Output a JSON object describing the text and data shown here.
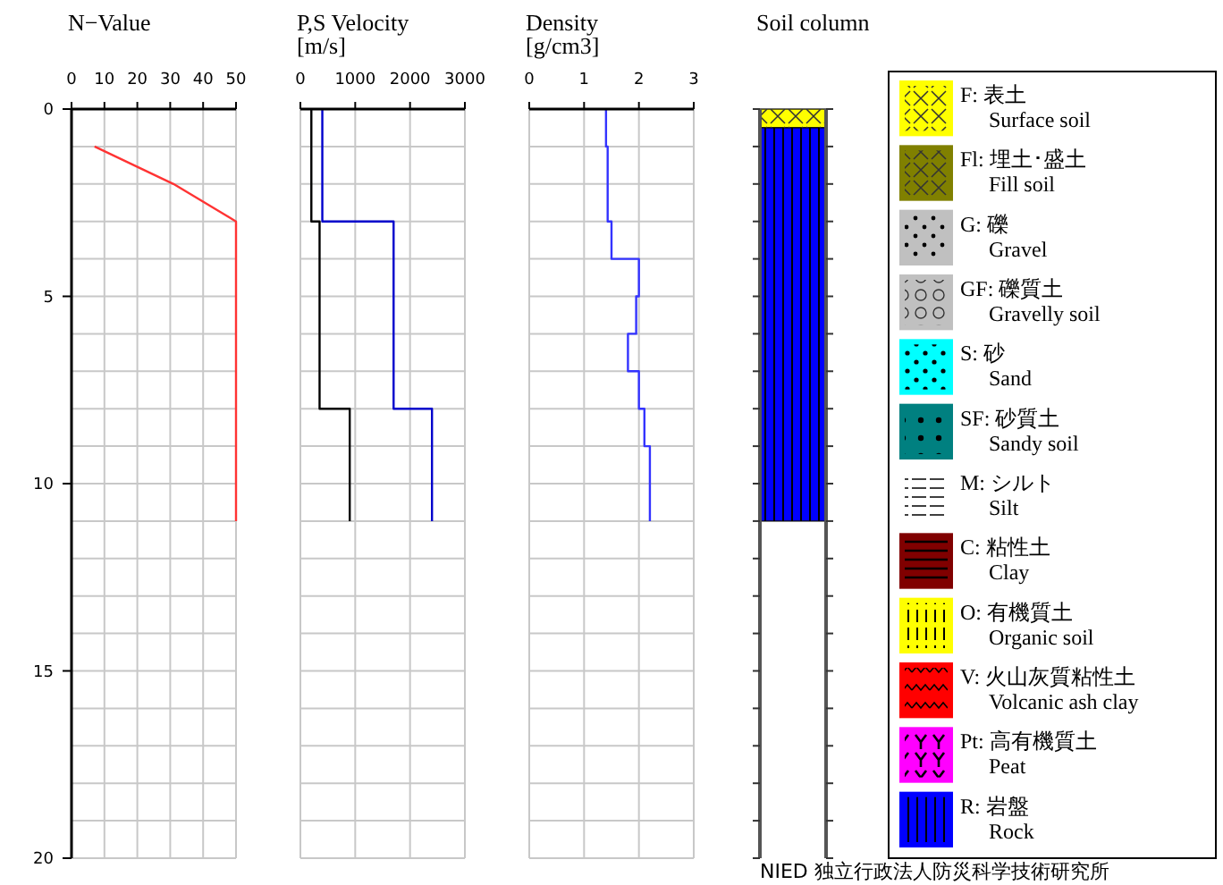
{
  "chart_data": [
    {
      "type": "line",
      "title": "N−Value",
      "xlim": [
        0,
        50
      ],
      "xticks": [
        0,
        10,
        20,
        30,
        40,
        50
      ],
      "ylim": [
        20,
        0
      ],
      "yticks": [
        0,
        {
          "value": 1,
          "label": null
        },
        {
          "value": 2,
          "label": null
        },
        {
          "value": 3,
          "label": null
        },
        {
          "value": 4,
          "label": null
        },
        5,
        {
          "value": 6,
          "label": null
        },
        {
          "value": 7,
          "label": null
        },
        {
          "value": 8,
          "label": null
        },
        {
          "value": 9,
          "label": null
        },
        10,
        {
          "value": 11,
          "label": null
        },
        {
          "value": 12,
          "label": null
        },
        {
          "value": 13,
          "label": null
        },
        {
          "value": 14,
          "label": null
        },
        15,
        {
          "value": 16,
          "label": null
        },
        {
          "value": 17,
          "label": null
        },
        {
          "value": 18,
          "label": null
        },
        {
          "value": 19,
          "label": null
        },
        20
      ],
      "grid": true,
      "series": [
        {
          "color": "#ff3333",
          "x": [
            7,
            31,
            50,
            50
          ],
          "values": [
            1,
            2,
            3,
            11
          ]
        }
      ]
    },
    {
      "type": "line",
      "title": "P,S Velocity",
      "subtitle": "[m/s]",
      "xlim": [
        0,
        3000
      ],
      "xticks": [
        0,
        1000,
        2000,
        3000
      ],
      "ylim": [
        20,
        0
      ],
      "yticks": [
        0,
        1,
        2,
        3,
        4,
        5,
        6,
        7,
        8,
        9,
        10,
        11,
        12,
        13,
        14,
        15,
        16,
        17,
        18,
        19,
        20
      ],
      "grid": true,
      "tick_labels": "x",
      "series": [
        {
          "color": "#000000",
          "x": [
            200,
            200,
            350,
            350,
            900,
            900
          ],
          "values": [
            0,
            3,
            3,
            8,
            8,
            11
          ]
        },
        {
          "color": "#0000cc",
          "x": [
            400,
            400,
            1700,
            1700,
            2400,
            2400
          ],
          "values": [
            0,
            3,
            3,
            8,
            8,
            11
          ]
        }
      ]
    },
    {
      "type": "line",
      "title": "Density",
      "subtitle": "[g/cm3]",
      "xlim": [
        0,
        3
      ],
      "xticks": [
        0,
        1,
        2,
        3
      ],
      "ylim": [
        20,
        0
      ],
      "yticks": [
        0,
        1,
        2,
        3,
        4,
        5,
        6,
        7,
        8,
        9,
        10,
        11,
        12,
        13,
        14,
        15,
        16,
        17,
        18,
        19,
        20
      ],
      "grid": true,
      "tick_labels": "x",
      "series": [
        {
          "color": "#3333ff",
          "x": [
            1.4,
            1.4,
            1.43,
            1.43,
            1.5,
            1.5,
            2.0,
            2.0,
            1.95,
            1.95,
            1.8,
            1.8,
            2.0,
            2.0,
            2.1,
            2.1,
            2.2,
            2.2
          ],
          "values": [
            0,
            1,
            1,
            3,
            3,
            4,
            4,
            5,
            5,
            6,
            6,
            7,
            7,
            8,
            8,
            9,
            9,
            11
          ]
        }
      ]
    },
    {
      "type": "bar",
      "stacked": true,
      "title": "Soil column",
      "categories": [
        null
      ],
      "ylim": [
        20,
        0
      ],
      "yticks": [
        {
          "value": 0,
          "label": null
        },
        {
          "value": 1,
          "label": null
        },
        {
          "value": 2,
          "label": null
        },
        {
          "value": 3,
          "label": null
        },
        {
          "value": 4,
          "label": null
        },
        {
          "value": 5,
          "label": null
        },
        {
          "value": 6,
          "label": null
        },
        {
          "value": 7,
          "label": null
        },
        {
          "value": 8,
          "label": null
        },
        {
          "value": 9,
          "label": null
        },
        {
          "value": 10,
          "label": null
        },
        {
          "value": 11,
          "label": null
        },
        {
          "value": 12,
          "label": null
        },
        {
          "value": 13,
          "label": null
        },
        {
          "value": 14,
          "label": null
        },
        {
          "value": 15,
          "label": null
        },
        {
          "value": 16,
          "label": null
        },
        {
          "value": 17,
          "label": null
        },
        {
          "value": 18,
          "label": null
        },
        {
          "value": 19,
          "label": null
        },
        {
          "value": 20,
          "label": null
        }
      ],
      "tick_labels": false,
      "legend": "right",
      "annotations": [
        "NIED 独立行政法人防災科学技術研究所"
      ],
      "series": [
        {
          "name": "F: 表土\nSurface soil",
          "color": "#ffff00",
          "values": [
            0.5
          ]
        },
        {
          "name": "Fl: 埋土･盛土\nFill soil",
          "color": "#808000",
          "values": [
            null
          ]
        },
        {
          "name": "G: 礫\nGravel",
          "color": "#c0c0c0",
          "values": [
            null
          ]
        },
        {
          "name": "GF: 礫質土\nGravelly soil",
          "color": "#c0c0c0",
          "values": [
            null
          ]
        },
        {
          "name": "S: 砂\nSand",
          "color": "#00ffff",
          "values": [
            null
          ]
        },
        {
          "name": "SF: 砂質土\nSandy soil",
          "color": "#008080",
          "values": [
            null
          ]
        },
        {
          "name": "M: シルト\nSilt",
          "color": "#ffffff",
          "values": [
            null
          ]
        },
        {
          "name": "C: 粘性土\nClay",
          "color": "#800000",
          "values": [
            null
          ]
        },
        {
          "name": "O: 有機質土\nOrganic soil",
          "color": "#ffff00",
          "values": [
            null
          ]
        },
        {
          "name": "V: 火山灰質粘性土\nVolcanic ash clay",
          "color": "#ff0000",
          "values": [
            null
          ]
        },
        {
          "name": "Pt: 高有機質土\nPeat",
          "color": "#ff00ff",
          "values": [
            null
          ]
        },
        {
          "name": "R: 岩盤\nRock",
          "color": "#0000ff",
          "values": [
            10.5
          ]
        }
      ]
    }
  ]
}
